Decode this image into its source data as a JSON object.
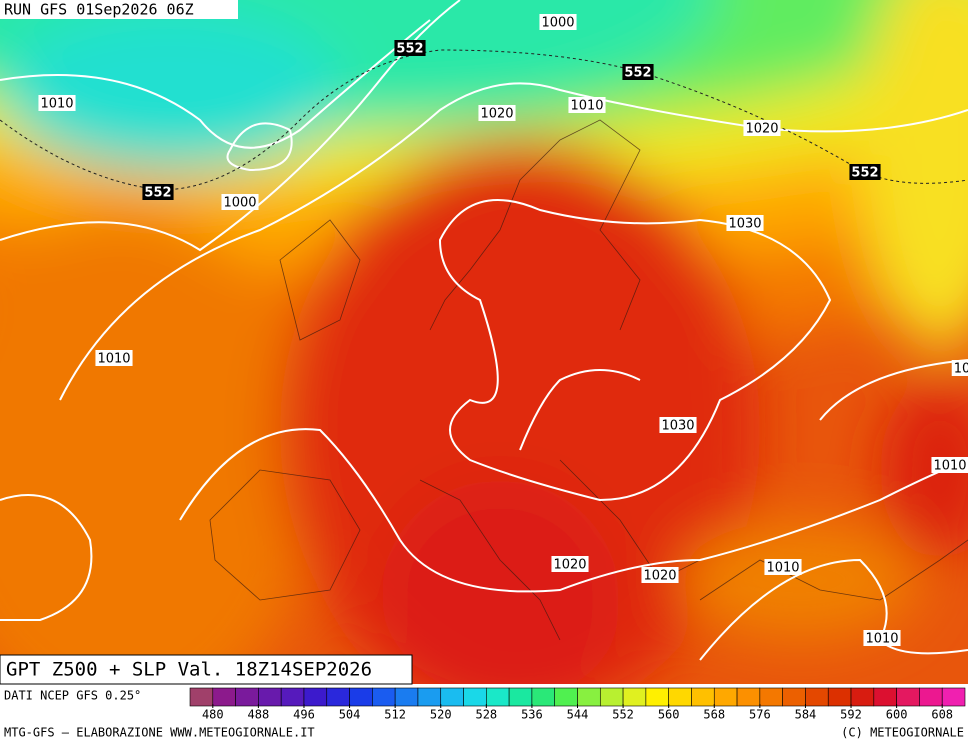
{
  "header": {
    "run": "RUN GFS 01Sep2026 06Z",
    "title": "GPT Z500 + SLP Val. 18Z14SEP2026"
  },
  "map": {
    "labels": [
      "1000",
      "552",
      "552",
      "1010",
      "1020",
      "1010",
      "1020",
      "552",
      "1000",
      "552",
      "1030",
      "1010",
      "1030",
      "1010",
      "1020",
      "1020",
      "1010",
      "1010",
      "10"
    ]
  },
  "legend": {
    "source": "DATI NCEP GFS 0.25°",
    "colors": [
      "#a0406a",
      "#8c1a8c",
      "#7a1a9c",
      "#681aac",
      "#561abc",
      "#3c1acc",
      "#2a28dc",
      "#1a3ce8",
      "#1a5cf0",
      "#1a7cf0",
      "#1a9cf0",
      "#1abcf0",
      "#1ad8e8",
      "#1ae8c8",
      "#1ae8a0",
      "#2ae878",
      "#50f050",
      "#88f040",
      "#b8f030",
      "#e0f020",
      "#fff000",
      "#ffd800",
      "#ffc000",
      "#ffa800",
      "#fc9000",
      "#f47800",
      "#ec6000",
      "#e44800",
      "#dc3000",
      "#d81c10",
      "#dc1030",
      "#e41860",
      "#ec1890",
      "#f020b0"
    ],
    "ticks": [
      480,
      488,
      496,
      504,
      512,
      520,
      528,
      536,
      544,
      552,
      560,
      568,
      576,
      584,
      592,
      600,
      608
    ]
  },
  "footer": {
    "left": "MTG-GFS — ELABORAZIONE WWW.METEOGIORNALE.IT",
    "right": "(C) METEOGIORNALE"
  }
}
